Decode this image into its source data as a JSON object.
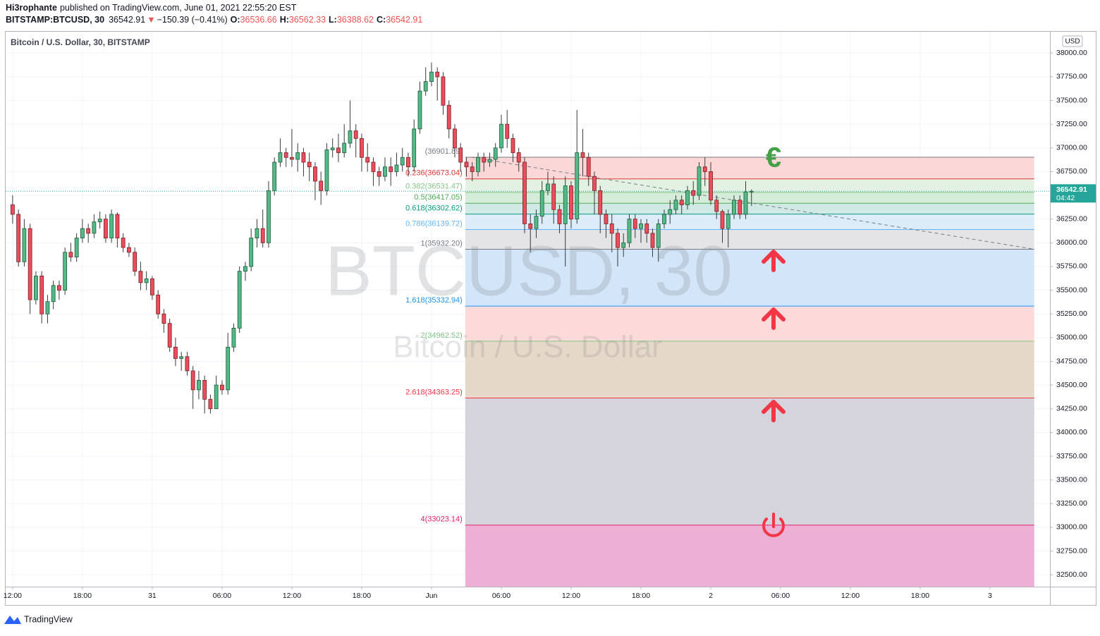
{
  "header": {
    "author": "Hi3rophante",
    "published": "published on TradingView.com, June 01, 2021 22:55:20 EST",
    "symbol": "BITSTAMP:BTCUSD, 30",
    "last": "36542.91",
    "arrow": "▼",
    "change": "−150.39 (−0.41%)",
    "ohlc": [
      {
        "label": "O:",
        "value": "36536.66"
      },
      {
        "label": "H:",
        "value": "36562.33"
      },
      {
        "label": "L:",
        "value": "36388.62"
      },
      {
        "label": "C:",
        "value": "36542.91"
      }
    ]
  },
  "footer": {
    "brand": "TradingView"
  },
  "chart_data": {
    "type": "candlestick",
    "title": "Bitcoin / U.S. Dollar, 30, BITSTAMP",
    "watermark": "BTCUSD, 30",
    "watermark_sub": "Bitcoin / U.S. Dollar",
    "currency": "USD",
    "up_color": "#53b987",
    "down_color": "#eb4d5c",
    "open": [
      36400,
      36300,
      35800,
      36150,
      35400,
      35650,
      35250,
      35380,
      35550,
      35500,
      35900,
      35850,
      36050,
      36150,
      36100,
      36220,
      36250,
      36050,
      36300,
      36050,
      35950,
      35900,
      35700,
      35580,
      35620,
      35450,
      35250,
      35150,
      34900,
      34780,
      34800,
      34650,
      34450,
      34550,
      34350,
      34250,
      34500,
      34450,
      34900,
      35100,
      35700,
      35750,
      36050,
      36150,
      36000,
      36550,
      36850,
      36950,
      36900,
      36880,
      36950,
      36850,
      36800,
      36650,
      36550,
      36980,
      37000,
      36950,
      37050,
      37180,
      37100,
      36900,
      36850,
      36750,
      36700,
      36800,
      36750,
      36820,
      36900,
      36800,
      37200,
      37600,
      37700,
      37800,
      37750,
      37450,
      37200,
      37000,
      36850,
      36800,
      36750,
      36900,
      36850,
      36880,
      37000,
      37250,
      37100,
      36950,
      36850,
      36200,
      36150,
      36280,
      36550,
      36620,
      36350,
      36200,
      36600,
      36250,
      36950,
      36900,
      36700,
      36550,
      36300,
      36200,
      36100,
      35950,
      36000,
      36250,
      36150,
      36200,
      36100,
      35950,
      36200,
      36300,
      36350,
      36450,
      36400,
      36550,
      36500,
      36800,
      36750,
      36450,
      36330,
      36150,
      36300,
      36450,
      36300,
      36536.66
    ],
    "high": [
      36500,
      36350,
      36250,
      36200,
      35700,
      35700,
      35450,
      35600,
      35600,
      35950,
      36000,
      36100,
      36250,
      36200,
      36300,
      36330,
      36300,
      36350,
      36320,
      36100,
      36000,
      35950,
      35800,
      35700,
      35650,
      35500,
      35300,
      35200,
      35000,
      34850,
      34850,
      34700,
      34650,
      34600,
      34400,
      34600,
      34550,
      35050,
      35150,
      35750,
      35800,
      36150,
      36250,
      36350,
      36650,
      36900,
      37100,
      37000,
      37200,
      37050,
      37000,
      36950,
      36850,
      36750,
      37050,
      37100,
      37150,
      37250,
      37500,
      37250,
      37150,
      37050,
      36900,
      36800,
      36900,
      36900,
      36950,
      37000,
      36950,
      37300,
      37700,
      37850,
      37900,
      37850,
      37800,
      37500,
      37250,
      37050,
      36900,
      36850,
      36950,
      36950,
      36950,
      37050,
      37350,
      37400,
      37150,
      37000,
      36900,
      36300,
      36350,
      36650,
      36750,
      36700,
      36400,
      36700,
      36650,
      37400,
      37200,
      36950,
      36750,
      36600,
      36350,
      36300,
      36150,
      36100,
      36300,
      36300,
      36250,
      36250,
      36150,
      36250,
      36350,
      36450,
      36500,
      36500,
      36600,
      36650,
      36850,
      36900,
      36850,
      36500,
      36350,
      36350,
      36500,
      36500,
      36650,
      36562.33
    ],
    "low": [
      36200,
      35750,
      35750,
      35250,
      35350,
      35150,
      35150,
      35300,
      35400,
      35450,
      35800,
      35800,
      36000,
      36000,
      36050,
      36150,
      36000,
      36000,
      35950,
      35900,
      35850,
      35650,
      35500,
      35500,
      35400,
      35200,
      35050,
      34850,
      34700,
      34650,
      34600,
      34250,
      34350,
      34200,
      34200,
      34250,
      34400,
      34400,
      34850,
      35050,
      35600,
      35700,
      35950,
      35950,
      35950,
      36500,
      36800,
      36800,
      36800,
      36750,
      36700,
      36650,
      36450,
      36400,
      36500,
      36900,
      36850,
      36900,
      37000,
      36900,
      36750,
      36750,
      36600,
      36600,
      36650,
      36600,
      36700,
      36750,
      36700,
      36750,
      37150,
      37550,
      37650,
      37500,
      37350,
      37100,
      36900,
      36750,
      36700,
      36650,
      36700,
      36750,
      36800,
      36800,
      36950,
      37000,
      36850,
      36750,
      36100,
      35900,
      36050,
      36200,
      36500,
      36200,
      36100,
      35750,
      36150,
      36200,
      36700,
      36600,
      36300,
      36100,
      36050,
      35900,
      35750,
      35850,
      35950,
      36050,
      36000,
      36000,
      35850,
      35800,
      36150,
      36200,
      36300,
      36300,
      36350,
      36400,
      36450,
      36600,
      36400,
      36250,
      36000,
      35950,
      36250,
      36250,
      36250,
      36388.62
    ],
    "close": [
      36300,
      35800,
      36150,
      35400,
      35650,
      35250,
      35380,
      35550,
      35500,
      35900,
      35850,
      36050,
      36150,
      36100,
      36220,
      36250,
      36050,
      36300,
      36050,
      35950,
      35900,
      35700,
      35580,
      35620,
      35450,
      35250,
      35150,
      34900,
      34780,
      34800,
      34650,
      34450,
      34550,
      34350,
      34250,
      34500,
      34450,
      34900,
      35100,
      35700,
      35750,
      36050,
      36150,
      36000,
      36550,
      36850,
      36950,
      36900,
      36880,
      36950,
      36850,
      36800,
      36650,
      36550,
      36980,
      37000,
      36950,
      37050,
      37180,
      37100,
      36900,
      36850,
      36750,
      36700,
      36800,
      36750,
      36820,
      36900,
      36800,
      37200,
      37600,
      37700,
      37800,
      37750,
      37450,
      37200,
      37000,
      36850,
      36800,
      36750,
      36900,
      36850,
      36880,
      37000,
      37250,
      37100,
      36950,
      36850,
      36200,
      36150,
      36280,
      36550,
      36620,
      36350,
      36200,
      36600,
      36250,
      36950,
      36900,
      36700,
      36550,
      36300,
      36200,
      36100,
      35950,
      36000,
      36250,
      36150,
      36200,
      36100,
      35950,
      36200,
      36300,
      36350,
      36450,
      36400,
      36550,
      36500,
      36800,
      36750,
      36450,
      36330,
      36150,
      36300,
      36450,
      36300,
      36536.66,
      36542.91
    ],
    "xlim": [
      -1.2,
      178.3
    ],
    "ylim": [
      32375,
      38225
    ],
    "xticks": [
      {
        "value": 0,
        "label": "12:00"
      },
      {
        "value": 12,
        "label": "18:00"
      },
      {
        "value": 24,
        "label": "31"
      },
      {
        "value": 36,
        "label": "06:00"
      },
      {
        "value": 48,
        "label": "12:00"
      },
      {
        "value": 60,
        "label": "18:00"
      },
      {
        "value": 72,
        "label": "Jun"
      },
      {
        "value": 84,
        "label": "06:00"
      },
      {
        "value": 96,
        "label": "12:00"
      },
      {
        "value": 108,
        "label": "18:00"
      },
      {
        "value": 120,
        "label": "2"
      },
      {
        "value": 132,
        "label": "06:00"
      },
      {
        "value": 144,
        "label": "12:00"
      },
      {
        "value": 156,
        "label": "18:00"
      },
      {
        "value": 168,
        "label": "3"
      }
    ],
    "yticks": [
      {
        "value": 32500,
        "label": "32500.00"
      },
      {
        "value": 32750,
        "label": "32750.00"
      },
      {
        "value": 33000,
        "label": "33000.00"
      },
      {
        "value": 33250,
        "label": "33250.00"
      },
      {
        "value": 33500,
        "label": "33500.00"
      },
      {
        "value": 33750,
        "label": "33750.00"
      },
      {
        "value": 34000,
        "label": "34000.00"
      },
      {
        "value": 34250,
        "label": "34250.00"
      },
      {
        "value": 34500,
        "label": "34500.00"
      },
      {
        "value": 34750,
        "label": "34750.00"
      },
      {
        "value": 35000,
        "label": "35000.00"
      },
      {
        "value": 35250,
        "label": "35250.00"
      },
      {
        "value": 35500,
        "label": "35500.00"
      },
      {
        "value": 35750,
        "label": "35750.00"
      },
      {
        "value": 36000,
        "label": "36000.00"
      },
      {
        "value": 36250,
        "label": "36250.00"
      },
      {
        "value": 36500,
        "label": "36500.00"
      },
      {
        "value": 36750,
        "label": "36750.00"
      },
      {
        "value": 37000,
        "label": "37000.00"
      },
      {
        "value": 37250,
        "label": "37250.00"
      },
      {
        "value": 37500,
        "label": "37500.00"
      },
      {
        "value": 37750,
        "label": "37750.00"
      },
      {
        "value": 38000,
        "label": "38000.00"
      }
    ],
    "grid": true,
    "last_price": {
      "value": 36542.91,
      "countdown": "04:42",
      "color": "#26a69a"
    },
    "fib": {
      "start_index": 77.8,
      "end_index": 175.6,
      "trend_start_index": 78.8,
      "levels": [
        {
          "label": "(36901.89)",
          "price": 36901.89,
          "color": "#787b86",
          "fill": "#fbd7d7"
        },
        {
          "label": "0.236(36673.04)",
          "price": 36673.04,
          "color": "#e53935",
          "fill": "#e3f1e3"
        },
        {
          "label": "0.382(36531.47)",
          "price": 36531.47,
          "color": "#81c784",
          "fill": "#d6ecdb"
        },
        {
          "label": "0.5(36417.05)",
          "price": 36417.05,
          "color": "#4caf50",
          "fill": "#d0e9e4"
        },
        {
          "label": "0.618(36302.62)",
          "price": 36302.62,
          "color": "#089981",
          "fill": "#dcedf9"
        },
        {
          "label": "0.786(36139.72)",
          "price": 36139.72,
          "color": "#64b5f6",
          "fill": "#e4e4e6"
        },
        {
          "label": "1(35932.20)",
          "price": 35932.2,
          "color": "#787b86",
          "fill": "#d3e6f9"
        },
        {
          "label": "1.618(35332.94)",
          "price": 35332.94,
          "color": "#2196f3",
          "fill": "#fbdad9"
        },
        {
          "label": "2(34962.52)",
          "price": 34962.52,
          "color": "#81c784",
          "fill": "#e5d8c8"
        },
        {
          "label": "2.618(34363.25)",
          "price": 34363.25,
          "color": "#f23645",
          "fill": "#d5d3db"
        },
        {
          "label": "4(33023.14)",
          "price": 33023.14,
          "color": "#e91e63",
          "fill": "#ecb0d6"
        }
      ]
    }
  }
}
